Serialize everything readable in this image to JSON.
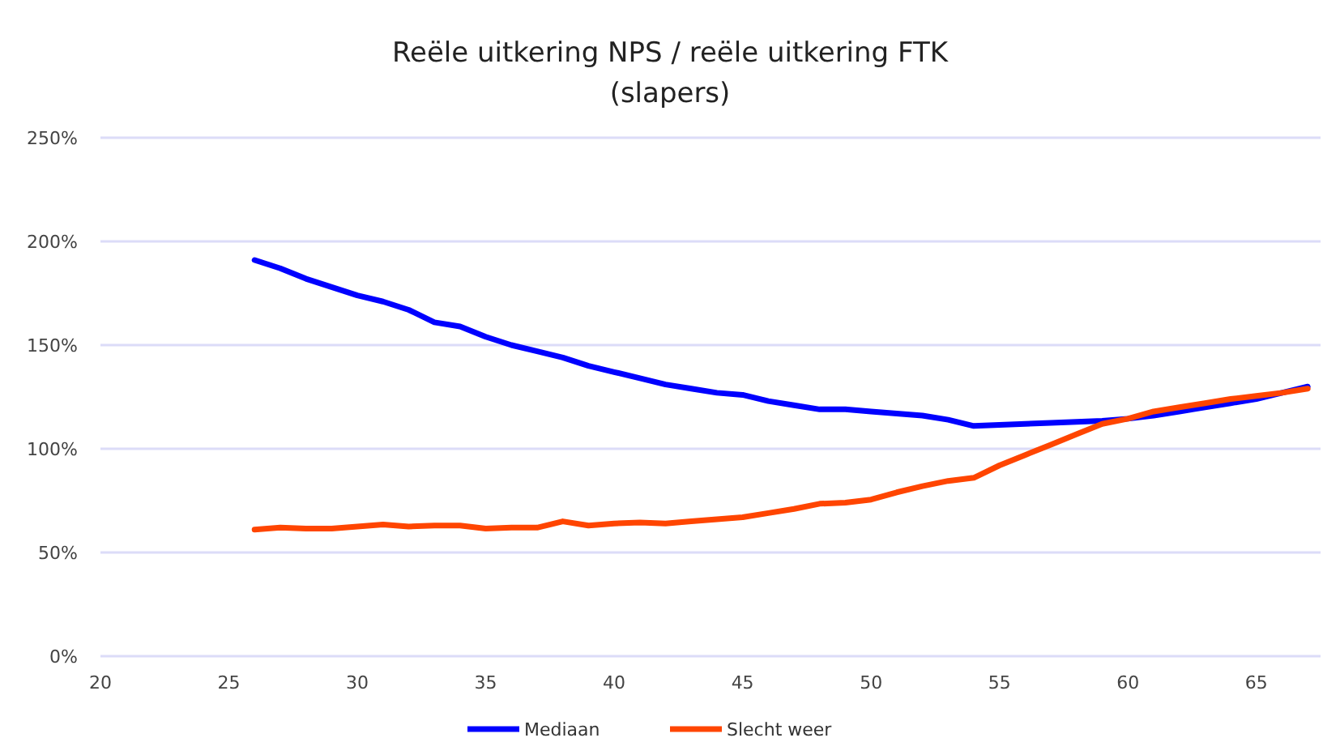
{
  "chart_data": {
    "type": "line",
    "title": "Reële uitkering NPS / reële uitkering FTK",
    "subtitle": "(slapers)",
    "x": [
      26,
      27,
      28,
      29,
      30,
      31,
      32,
      33,
      34,
      35,
      36,
      37,
      38,
      39,
      40,
      41,
      42,
      43,
      44,
      45,
      46,
      47,
      48,
      49,
      50,
      51,
      52,
      53,
      54,
      55,
      56,
      57,
      58,
      59,
      60,
      61,
      62,
      63,
      64,
      65,
      66,
      67
    ],
    "series": [
      {
        "name": "Mediaan",
        "color": "#0000ff",
        "values": [
          191,
          187,
          182,
          178,
          174,
          171,
          167,
          161,
          159,
          154,
          150,
          147,
          144,
          140,
          137,
          134,
          131,
          129,
          127,
          126,
          123,
          121,
          119,
          119,
          118,
          117,
          116,
          114,
          111,
          111.5,
          112,
          112.5,
          113,
          113.5,
          114.5,
          116,
          118,
          120,
          122,
          124,
          127,
          130
        ]
      },
      {
        "name": "Slecht weer",
        "color": "#ff4500",
        "values": [
          61,
          62,
          61.5,
          61.5,
          62.5,
          63.5,
          62.5,
          63,
          63,
          61.5,
          62,
          62,
          65,
          63,
          64,
          64.5,
          64,
          65,
          66,
          67,
          69,
          71,
          73.5,
          74,
          75.5,
          79,
          82,
          84.5,
          86,
          92,
          97,
          102,
          107,
          112,
          114.5,
          118,
          120,
          122,
          124,
          125.5,
          127,
          129
        ]
      }
    ],
    "xlim": [
      20,
      67.5
    ],
    "xticks": [
      20,
      25,
      30,
      35,
      40,
      45,
      50,
      55,
      60,
      65
    ],
    "ylim": [
      0,
      250
    ],
    "yticks": [
      {
        "value": 0,
        "label": "0%"
      },
      {
        "value": 50,
        "label": "50%"
      },
      {
        "value": 100,
        "label": "100%"
      },
      {
        "value": 150,
        "label": "150%"
      },
      {
        "value": 200,
        "label": "200%"
      },
      {
        "value": 250,
        "label": "250%"
      }
    ],
    "grid": "y",
    "legend": "bottom",
    "marker": "none",
    "line_style": "solid"
  }
}
